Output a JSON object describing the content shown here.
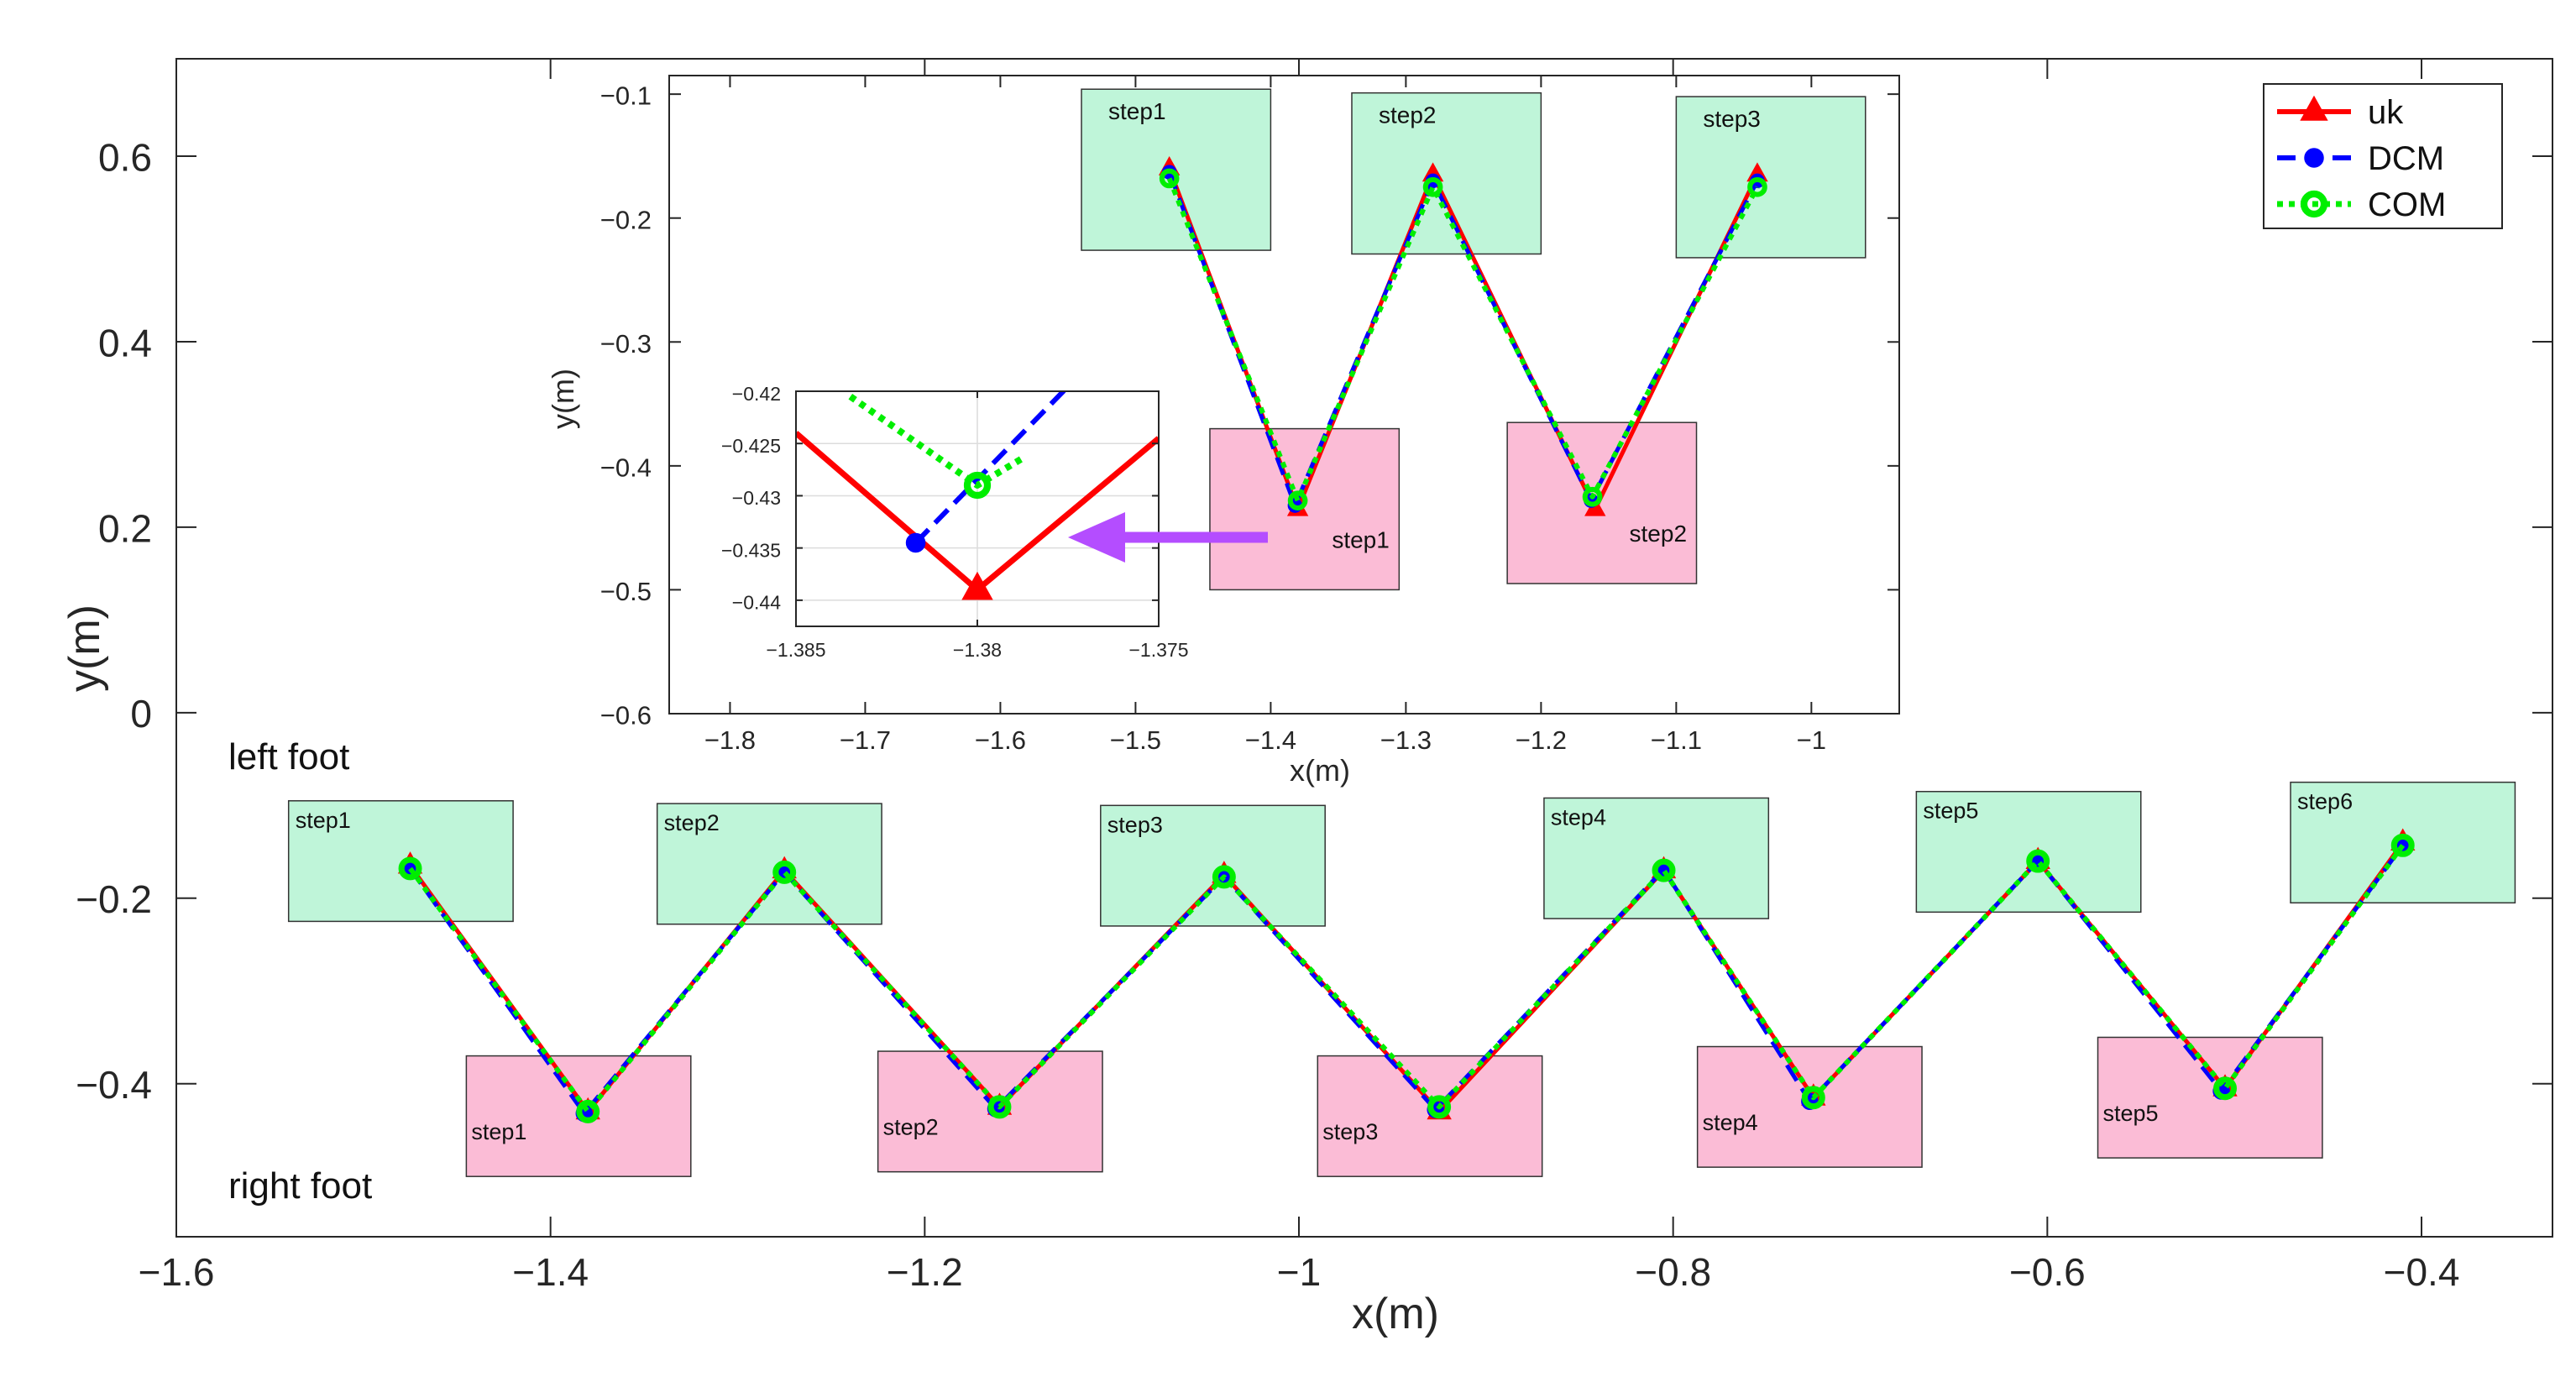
{
  "chart_data": [
    {
      "id": "main",
      "type": "line",
      "xlabel": "x(m)",
      "ylabel": "y(m)",
      "xlim": [
        -1.6,
        -0.33
      ],
      "ylim": [
        -0.565,
        0.705
      ],
      "xticks": [
        -1.6,
        -1.4,
        -1.2,
        -1,
        -0.8,
        -0.6,
        -0.4
      ],
      "xtick_labels": [
        "−1.6",
        "−1.4",
        "−1.2",
        "−1",
        "−0.8",
        "−0.6",
        "−0.4"
      ],
      "yticks": [
        -0.4,
        -0.2,
        0,
        0.2,
        0.4,
        0.6
      ],
      "ytick_labels": [
        "−0.4",
        "−0.2",
        "0",
        "0.2",
        "0.4",
        "0.6"
      ],
      "grid": false,
      "annotations": [
        "left foot",
        "right foot"
      ],
      "footprints": [
        {
          "label": "step1",
          "foot": "left",
          "x": [
            -1.54,
            -1.42
          ],
          "y": [
            -0.225,
            -0.095
          ]
        },
        {
          "label": "step2",
          "foot": "left",
          "x": [
            -1.343,
            -1.223
          ],
          "y": [
            -0.228,
            -0.098
          ]
        },
        {
          "label": "step3",
          "foot": "left",
          "x": [
            -1.106,
            -0.986
          ],
          "y": [
            -0.23,
            -0.1
          ]
        },
        {
          "label": "step4",
          "foot": "left",
          "x": [
            -0.869,
            -0.749
          ],
          "y": [
            -0.222,
            -0.092
          ]
        },
        {
          "label": "step5",
          "foot": "left",
          "x": [
            -0.67,
            -0.55
          ],
          "y": [
            -0.215,
            -0.085
          ]
        },
        {
          "label": "step6",
          "foot": "left",
          "x": [
            -0.47,
            -0.35
          ],
          "y": [
            -0.205,
            -0.075
          ]
        },
        {
          "label": "step1",
          "foot": "right",
          "x": [
            -1.445,
            -1.325
          ],
          "y": [
            -0.5,
            -0.37
          ]
        },
        {
          "label": "step2",
          "foot": "right",
          "x": [
            -1.225,
            -1.105
          ],
          "y": [
            -0.495,
            -0.365
          ]
        },
        {
          "label": "step3",
          "foot": "right",
          "x": [
            -0.99,
            -0.87
          ],
          "y": [
            -0.5,
            -0.37
          ]
        },
        {
          "label": "step4",
          "foot": "right",
          "x": [
            -0.787,
            -0.667
          ],
          "y": [
            -0.49,
            -0.36
          ]
        },
        {
          "label": "step5",
          "foot": "right",
          "x": [
            -0.573,
            -0.453
          ],
          "y": [
            -0.48,
            -0.35
          ]
        }
      ],
      "series": [
        {
          "name": "uk",
          "color": "#ff0000",
          "x": [
            -1.475,
            -1.38,
            -1.275,
            -1.16,
            -1.04,
            -0.925,
            -0.805,
            -0.725,
            -0.605,
            -0.505,
            -0.41
          ],
          "y": [
            -0.165,
            -0.43,
            -0.17,
            -0.425,
            -0.175,
            -0.43,
            -0.17,
            -0.415,
            -0.16,
            -0.405,
            -0.14
          ]
        },
        {
          "name": "DCM",
          "color": "#0000ff",
          "x": [
            -1.475,
            -1.382,
            -1.275,
            -1.162,
            -1.04,
            -0.927,
            -0.805,
            -0.727,
            -0.605,
            -0.507,
            -0.41
          ],
          "y": [
            -0.168,
            -0.432,
            -0.172,
            -0.427,
            -0.177,
            -0.428,
            -0.169,
            -0.419,
            -0.16,
            -0.408,
            -0.143
          ]
        },
        {
          "name": "COM",
          "color": "#00ee00",
          "x": [
            -1.475,
            -1.38,
            -1.275,
            -1.16,
            -1.04,
            -0.925,
            -0.805,
            -0.725,
            -0.605,
            -0.505,
            -0.41
          ],
          "y": [
            -0.168,
            -0.43,
            -0.172,
            -0.425,
            -0.177,
            -0.425,
            -0.17,
            -0.415,
            -0.16,
            -0.405,
            -0.143
          ]
        }
      ],
      "legend": {
        "position": "top-right",
        "entries": [
          "uk",
          "DCM",
          "COM"
        ]
      }
    },
    {
      "id": "inset",
      "type": "line",
      "xlabel": "x(m)",
      "ylabel": "y(m)",
      "xlim": [
        -1.845,
        -0.935
      ],
      "ylim": [
        -0.6,
        -0.085
      ],
      "xticks": [
        -1.8,
        -1.7,
        -1.6,
        -1.5,
        -1.4,
        -1.3,
        -1.2,
        -1.1,
        -1
      ],
      "xtick_labels": [
        "−1.8",
        "−1.7",
        "−1.6",
        "−1.5",
        "−1.4",
        "−1.3",
        "−1.2",
        "−1.1",
        "−1"
      ],
      "yticks": [
        -0.6,
        -0.5,
        -0.4,
        -0.3,
        -0.2,
        -0.1
      ],
      "ytick_labels": [
        "−0.6",
        "−0.5",
        "−0.4",
        "−0.3",
        "−0.2",
        "−0.1"
      ],
      "grid": false,
      "footprints": [
        {
          "label": "step1",
          "foot": "left",
          "x": [
            -1.54,
            -1.4
          ],
          "y": [
            -0.226,
            -0.096
          ]
        },
        {
          "label": "step2",
          "foot": "left",
          "x": [
            -1.34,
            -1.2
          ],
          "y": [
            -0.229,
            -0.099
          ]
        },
        {
          "label": "step3",
          "foot": "left",
          "x": [
            -1.1,
            -0.96
          ],
          "y": [
            -0.232,
            -0.102
          ]
        },
        {
          "label": "step1",
          "foot": "right",
          "x": [
            -1.445,
            -1.305
          ],
          "y": [
            -0.5,
            -0.37
          ]
        },
        {
          "label": "step2",
          "foot": "right",
          "x": [
            -1.225,
            -1.085
          ],
          "y": [
            -0.495,
            -0.365
          ]
        }
      ],
      "series": [
        {
          "name": "uk",
          "x": [
            -1.475,
            -1.38,
            -1.28,
            -1.16,
            -1.04
          ],
          "y": [
            -0.16,
            -0.435,
            -0.165,
            -0.435,
            -0.165
          ]
        },
        {
          "name": "DCM",
          "x": [
            -1.475,
            -1.382,
            -1.28,
            -1.163,
            -1.04
          ],
          "y": [
            -0.163,
            -0.432,
            -0.17,
            -0.428,
            -0.17
          ]
        },
        {
          "name": "COM",
          "x": [
            -1.475,
            -1.38,
            -1.28,
            -1.162,
            -1.04
          ],
          "y": [
            -0.168,
            -0.428,
            -0.175,
            -0.425,
            -0.175
          ]
        }
      ]
    },
    {
      "id": "zoom",
      "type": "line",
      "xlim": [
        -1.385,
        -1.375
      ],
      "ylim": [
        -0.4425,
        -0.42
      ],
      "xticks": [
        -1.385,
        -1.38,
        -1.375
      ],
      "xtick_labels": [
        "−1.385",
        "−1.38",
        "−1.375"
      ],
      "yticks": [
        -0.44,
        -0.435,
        -0.43,
        -0.425,
        -0.42
      ],
      "ytick_labels": [
        "−0.44",
        "−0.435",
        "−0.43",
        "−0.425",
        "−0.42"
      ],
      "grid": true,
      "series": [
        {
          "name": "uk",
          "x": [
            -1.385,
            -1.38,
            -1.375
          ],
          "y": [
            -0.424,
            -0.439,
            -0.4245
          ]
        },
        {
          "name": "DCM",
          "x": [
            -1.3817,
            -1.3776
          ],
          "y": [
            -0.4345,
            -0.4199
          ]
        },
        {
          "name": "COM",
          "x": [
            -1.3835,
            -1.38,
            -1.3787
          ],
          "y": [
            -0.4205,
            -0.429,
            -0.4263
          ]
        }
      ]
    }
  ]
}
